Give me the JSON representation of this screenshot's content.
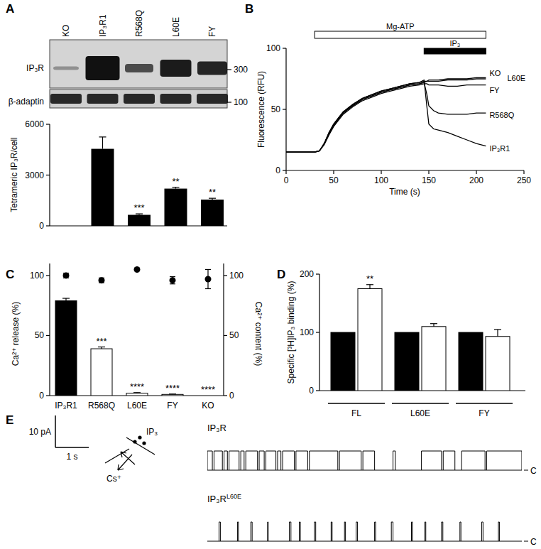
{
  "blot": {
    "rows": [
      "IP₃R",
      "β-adaptin"
    ],
    "markers": [
      300,
      100
    ]
  },
  "chart_data": [
    {
      "panel": "A",
      "type": "bar",
      "ylabel": "Tetrameric IP₃R/cell",
      "categories": [
        "KO",
        "IP₃R1",
        "R568Q",
        "L60E",
        "FY"
      ],
      "values": [
        0,
        4550,
        650,
        2200,
        1550
      ],
      "errors": [
        0,
        700,
        60,
        80,
        80
      ],
      "significance": [
        null,
        null,
        "***",
        "**",
        "**"
      ],
      "color": "#000000",
      "ylim": [
        0,
        6000
      ],
      "yticks": [
        0,
        3000,
        6000
      ],
      "tick_labels": "y"
    },
    {
      "panel": "B",
      "type": "line",
      "xlabel": "Time (s)",
      "ylabel": "Fluorescence (RFU)",
      "x": [
        0,
        10,
        20,
        30,
        35,
        40,
        45,
        50,
        60,
        70,
        80,
        90,
        100,
        110,
        120,
        130,
        140,
        145,
        148,
        150,
        155,
        160,
        170,
        180,
        190,
        200,
        210
      ],
      "series": [
        {
          "name": "KO",
          "color": "#000000",
          "values": [
            15,
            15,
            15,
            15,
            16,
            22,
            31,
            38,
            48,
            54,
            59,
            62,
            65,
            67,
            69,
            71,
            72,
            73,
            73,
            74,
            74,
            74,
            75,
            75,
            75,
            76,
            76
          ]
        },
        {
          "name": "L60E",
          "color": "#000000",
          "values": [
            15,
            15,
            15,
            15,
            16,
            22,
            30,
            37,
            47,
            53,
            58,
            61,
            64,
            66,
            68,
            70,
            71,
            72,
            73,
            73,
            73,
            73,
            74,
            74,
            74,
            75,
            75
          ]
        },
        {
          "name": "FY",
          "color": "#000000",
          "values": [
            15,
            15,
            15,
            15,
            16,
            21,
            29,
            36,
            46,
            52,
            57,
            60,
            63,
            65,
            67,
            69,
            70,
            71,
            71,
            70,
            70,
            70,
            69,
            69,
            70,
            70,
            70
          ]
        },
        {
          "name": "R568Q",
          "color": "#000000",
          "values": [
            15,
            15,
            15,
            15,
            16,
            22,
            30,
            37,
            47,
            53,
            58,
            61,
            64,
            66,
            68,
            70,
            71,
            72,
            62,
            53,
            49,
            47,
            46,
            46,
            46,
            47,
            47
          ]
        },
        {
          "name": "IP₃R1",
          "color": "#000000",
          "values": [
            15,
            15,
            15,
            15,
            16,
            22,
            31,
            38,
            48,
            54,
            59,
            62,
            65,
            67,
            69,
            71,
            72,
            74,
            52,
            38,
            34,
            33,
            31,
            28,
            25,
            22,
            20
          ]
        }
      ],
      "annotations": [
        {
          "label": "Mg-ATP",
          "start": 30,
          "end": 210,
          "color": "#ffffff"
        },
        {
          "label": "IP₃",
          "start": 145,
          "end": 210,
          "color": "#000000"
        }
      ],
      "xlim": [
        0,
        250
      ],
      "xticks": [
        0,
        50,
        100,
        150,
        200,
        250
      ],
      "ylim": [
        0,
        100
      ],
      "yticks": [
        0,
        50,
        100
      ]
    },
    {
      "panel": "C",
      "type": "bar",
      "ylabel": "Ca²⁺ release (%)",
      "y2label": "Ca²⁺ content (%)",
      "categories": [
        "IP₃R1",
        "R568Q",
        "L60E",
        "FY",
        "KO"
      ],
      "series": [
        {
          "type": "bar",
          "colors": [
            "#000000",
            "#ffffff",
            "#ffffff",
            "#ffffff",
            "#ffffff"
          ],
          "values": [
            79,
            39,
            2,
            1,
            0
          ],
          "errors": [
            2,
            1.5,
            0.5,
            0.3,
            0
          ],
          "significance": [
            null,
            "***",
            "****",
            "****",
            "****"
          ]
        },
        {
          "type": "scatter",
          "axis": "y2",
          "marker": "circle",
          "color": "#000000",
          "values": [
            100,
            96,
            105,
            96,
            97
          ],
          "errors": [
            2,
            2,
            1,
            3,
            8
          ]
        }
      ],
      "ylim": [
        0,
        110
      ],
      "yticks": [
        0,
        50,
        100
      ],
      "y2lim": [
        0,
        110
      ],
      "y2ticks": [
        0,
        50,
        100
      ]
    },
    {
      "panel": "D",
      "type": "bar",
      "ylabel": "Specific [³H]IP₃ binding (%)",
      "categories": [
        "FL",
        "L60E",
        "FY"
      ],
      "series": [
        {
          "color": "#000000",
          "values": [
            100,
            100,
            100
          ],
          "errors": [
            0,
            0,
            0
          ],
          "significance": [
            null,
            null,
            null
          ]
        },
        {
          "color": "#ffffff",
          "values": [
            175,
            110,
            93
          ],
          "errors": [
            7,
            5,
            12
          ],
          "significance": [
            "**",
            null,
            null
          ]
        }
      ],
      "ylim": [
        0,
        200
      ],
      "yticks": [
        0,
        100,
        200
      ]
    },
    {
      "panel": "E",
      "type": "trace",
      "scale_bars": [
        {
          "value": 10,
          "label": "10 pA"
        },
        {
          "value": 1,
          "label": "1 s"
        }
      ],
      "diagram_labels": [
        "IP₃",
        "Cs⁺"
      ],
      "closed_label": "C",
      "open_level": 6,
      "xlim": [
        0,
        9.4
      ],
      "series": [
        {
          "name": "IP₃R",
          "open_intervals": [
            [
              0,
              0.15
            ],
            [
              0.2,
              0.45
            ],
            [
              0.5,
              0.6
            ],
            [
              0.65,
              0.95
            ],
            [
              1.0,
              1.1
            ],
            [
              1.15,
              1.5
            ],
            [
              1.55,
              1.7
            ],
            [
              1.75,
              2.05
            ],
            [
              2.1,
              2.2
            ],
            [
              2.25,
              2.6
            ],
            [
              2.65,
              3.0
            ],
            [
              3.05,
              3.9
            ],
            [
              3.95,
              4.6
            ],
            [
              4.65,
              5.0
            ],
            [
              5.55,
              5.62
            ],
            [
              6.4,
              7.0
            ],
            [
              7.05,
              7.4
            ],
            [
              7.6,
              8.3
            ],
            [
              8.35,
              9.4
            ]
          ]
        },
        {
          "name": "IP₃R",
          "superscript": "L60E",
          "open_intervals": [
            [
              0.35,
              0.39
            ],
            [
              0.9,
              0.93
            ],
            [
              1.3,
              1.34
            ],
            [
              1.8,
              1.82
            ],
            [
              2.45,
              2.5
            ],
            [
              2.75,
              2.78
            ],
            [
              3.2,
              3.24
            ],
            [
              3.7,
              3.73
            ],
            [
              4.1,
              4.13
            ],
            [
              4.45,
              4.49
            ],
            [
              5.0,
              5.03
            ],
            [
              5.5,
              5.55
            ],
            [
              6.1,
              6.13
            ],
            [
              6.5,
              6.53
            ],
            [
              7.0,
              7.04
            ],
            [
              7.55,
              7.58
            ],
            [
              8.2,
              8.24
            ],
            [
              8.7,
              8.73
            ]
          ]
        }
      ]
    }
  ]
}
